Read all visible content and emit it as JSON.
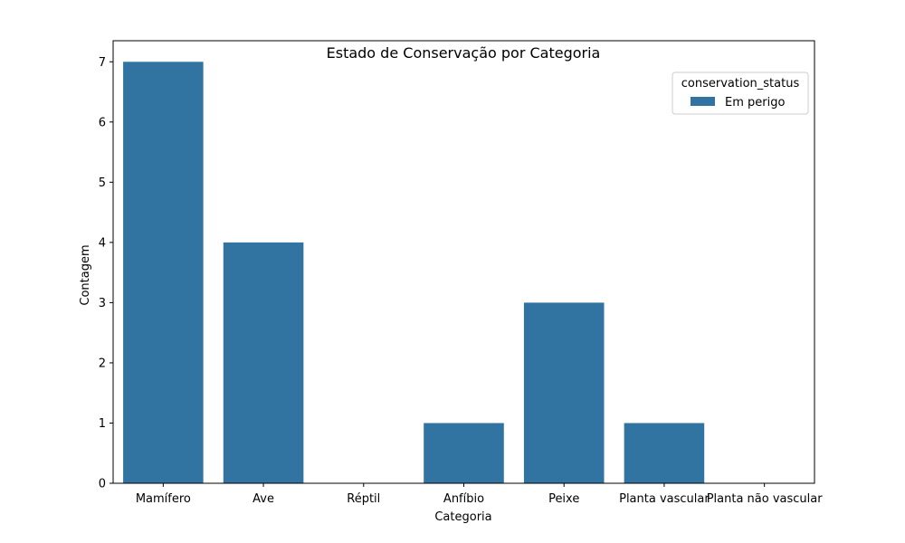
{
  "chart_data": {
    "type": "bar",
    "title": "Estado de Conservação por Categoria",
    "xlabel": "Categoria",
    "ylabel": "Contagem",
    "categories": [
      "Mamífero",
      "Ave",
      "Réptil",
      "Anfíbio",
      "Peixe",
      "Planta vascular",
      "Planta não vascular"
    ],
    "series": [
      {
        "name": "Em perigo",
        "values": [
          7,
          4,
          0,
          1,
          3,
          1,
          0
        ],
        "color": "#3274a1"
      }
    ],
    "ylim": [
      0,
      7.35
    ],
    "yticks": [
      "0",
      "1",
      "2",
      "3",
      "4",
      "5",
      "6",
      "7"
    ],
    "grid": false,
    "legend": {
      "title": "conservation_status",
      "placement": "top-right"
    }
  }
}
